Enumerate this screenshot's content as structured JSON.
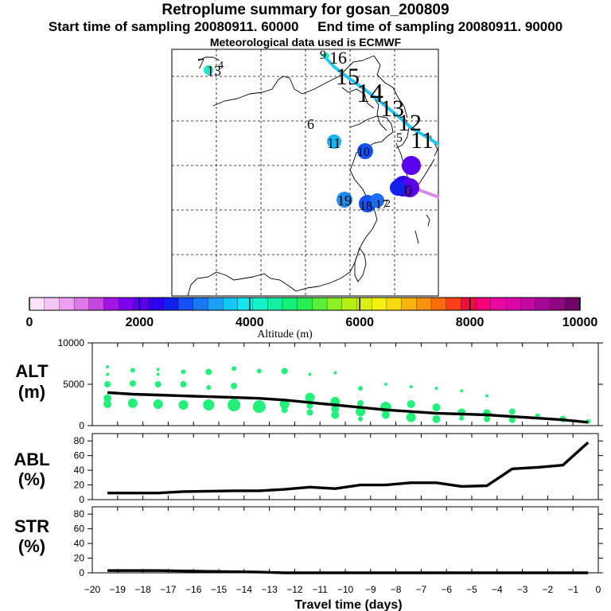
{
  "header": {
    "title": "Retroplume summary for gosan_200809",
    "sampling_start": "Start time of sampling 20080911. 60000",
    "sampling_end": "End time of sampling 20080911. 90000",
    "met_data": "Meteorological data used is ECMWF"
  },
  "colors": {
    "trajectory": "#22c6ee",
    "trajectory_tail": "#d88ae8",
    "dots": "#22f07a",
    "line": "#000000",
    "colorbar": [
      "#fbe3fb",
      "#f5c6f5",
      "#eda0ef",
      "#de78e6",
      "#c545e0",
      "#a414e6",
      "#7e00ee",
      "#5a00ee",
      "#2e00ee",
      "#1220ee",
      "#1450f4",
      "#1a78f4",
      "#1aa0f4",
      "#14c8f4",
      "#14e6f0",
      "#14f0c8",
      "#14f0a0",
      "#14f078",
      "#26f050",
      "#56f03a",
      "#8cf024",
      "#b4ee14",
      "#d8ee14",
      "#f4f014",
      "#f8d810",
      "#f8b40e",
      "#f8900c",
      "#f86c0c",
      "#f8401c",
      "#f00e3c",
      "#f0067a",
      "#ea06a0",
      "#d806a8",
      "#c406a4",
      "#a80696",
      "#8e0682",
      "#6e0466"
    ]
  },
  "chart_data": [
    {
      "type": "map",
      "title": "Retroplume summary for gosan_200809",
      "trajectory_labels": [
        {
          "label": "7",
          "day": 7
        },
        {
          "label": "13",
          "day": 13
        },
        {
          "label": "4",
          "day": 4
        },
        {
          "label": "9",
          "day": 9
        },
        {
          "label": "16",
          "day": 16
        },
        {
          "label": "15",
          "day": 15
        },
        {
          "label": "14",
          "day": 14
        },
        {
          "label": "13",
          "day": 13
        },
        {
          "label": "12",
          "day": 12
        },
        {
          "label": "5",
          "day": 5
        },
        {
          "label": "11",
          "day": 11
        },
        {
          "label": "6",
          "day": 6
        },
        {
          "label": "11",
          "day": 11
        },
        {
          "label": "10",
          "day": 10
        },
        {
          "label": "19",
          "day": 19
        },
        {
          "label": "18",
          "day": 18
        },
        {
          "label": "17",
          "day": 17
        },
        {
          "label": "2",
          "day": 2
        },
        {
          "label": "0",
          "day": 0
        }
      ]
    },
    {
      "type": "colorbar",
      "xlabel": "Altitude (m)",
      "range": [
        0,
        10000
      ],
      "ticks": [
        "0",
        "2000",
        "4000",
        "6000",
        "8000",
        "10000"
      ]
    },
    {
      "type": "line",
      "panel": "ALT",
      "ylabel": [
        "ALT",
        "(m)"
      ],
      "ylim": [
        0,
        10000
      ],
      "yticks": [
        "0",
        "5000",
        "10000"
      ],
      "x": [
        -19.4,
        -18.4,
        -17.4,
        -16.4,
        -15.4,
        -14.4,
        -13.4,
        -12.4,
        -11.4,
        -10.4,
        -9.4,
        -8.4,
        -7.4,
        -6.4,
        -5.4,
        -4.4,
        -3.4,
        -2.4,
        -1.4,
        -0.4
      ],
      "line": [
        4000,
        3800,
        3700,
        3600,
        3500,
        3400,
        3300,
        3100,
        2800,
        2500,
        2200,
        1900,
        1700,
        1500,
        1400,
        1300,
        1100,
        900,
        700,
        400
      ],
      "points": [
        {
          "x": -19.4,
          "y": 7100,
          "s": 2
        },
        {
          "x": -19.4,
          "y": 6200,
          "s": 2
        },
        {
          "x": -19.4,
          "y": 5000,
          "s": 4
        },
        {
          "x": -19.4,
          "y": 3300,
          "s": 5
        },
        {
          "x": -19.4,
          "y": 2600,
          "s": 5
        },
        {
          "x": -18.4,
          "y": 6700,
          "s": 3
        },
        {
          "x": -18.4,
          "y": 5100,
          "s": 4
        },
        {
          "x": -18.4,
          "y": 2700,
          "s": 6
        },
        {
          "x": -17.4,
          "y": 6800,
          "s": 2
        },
        {
          "x": -17.4,
          "y": 6200,
          "s": 2
        },
        {
          "x": -17.4,
          "y": 5000,
          "s": 4
        },
        {
          "x": -17.4,
          "y": 2600,
          "s": 6
        },
        {
          "x": -16.4,
          "y": 6500,
          "s": 3
        },
        {
          "x": -16.4,
          "y": 5000,
          "s": 4
        },
        {
          "x": -16.4,
          "y": 2500,
          "s": 6
        },
        {
          "x": -15.4,
          "y": 6500,
          "s": 4
        },
        {
          "x": -15.4,
          "y": 4600,
          "s": 3
        },
        {
          "x": -15.4,
          "y": 2500,
          "s": 7
        },
        {
          "x": -14.4,
          "y": 6900,
          "s": 3
        },
        {
          "x": -14.4,
          "y": 4800,
          "s": 4
        },
        {
          "x": -14.4,
          "y": 2500,
          "s": 8
        },
        {
          "x": -13.4,
          "y": 6600,
          "s": 3
        },
        {
          "x": -13.4,
          "y": 2300,
          "s": 8
        },
        {
          "x": -12.4,
          "y": 6600,
          "s": 4
        },
        {
          "x": -12.4,
          "y": 2600,
          "s": 6
        },
        {
          "x": -12.4,
          "y": 1900,
          "s": 4
        },
        {
          "x": -11.4,
          "y": 6200,
          "s": 2
        },
        {
          "x": -11.4,
          "y": 3400,
          "s": 6
        },
        {
          "x": -11.4,
          "y": 2400,
          "s": 4
        },
        {
          "x": -11.4,
          "y": 1600,
          "s": 4
        },
        {
          "x": -10.4,
          "y": 6400,
          "s": 2
        },
        {
          "x": -10.4,
          "y": 2900,
          "s": 6
        },
        {
          "x": -10.4,
          "y": 2000,
          "s": 5
        },
        {
          "x": -10.4,
          "y": 1300,
          "s": 5
        },
        {
          "x": -9.4,
          "y": 4500,
          "s": 3
        },
        {
          "x": -9.4,
          "y": 2700,
          "s": 4
        },
        {
          "x": -9.4,
          "y": 1700,
          "s": 6
        },
        {
          "x": -9.4,
          "y": 800,
          "s": 3
        },
        {
          "x": -8.4,
          "y": 5000,
          "s": 2
        },
        {
          "x": -8.4,
          "y": 2200,
          "s": 7
        },
        {
          "x": -8.4,
          "y": 1300,
          "s": 5
        },
        {
          "x": -7.4,
          "y": 4700,
          "s": 2
        },
        {
          "x": -7.4,
          "y": 2600,
          "s": 5
        },
        {
          "x": -7.4,
          "y": 1000,
          "s": 6
        },
        {
          "x": -6.4,
          "y": 4500,
          "s": 2
        },
        {
          "x": -6.4,
          "y": 2200,
          "s": 5
        },
        {
          "x": -6.4,
          "y": 800,
          "s": 5
        },
        {
          "x": -5.4,
          "y": 4200,
          "s": 2
        },
        {
          "x": -5.4,
          "y": 1600,
          "s": 5
        },
        {
          "x": -5.4,
          "y": 900,
          "s": 3
        },
        {
          "x": -4.4,
          "y": 3600,
          "s": 2
        },
        {
          "x": -4.4,
          "y": 1500,
          "s": 5
        },
        {
          "x": -4.4,
          "y": 800,
          "s": 4
        },
        {
          "x": -3.4,
          "y": 1700,
          "s": 4
        },
        {
          "x": -3.4,
          "y": 700,
          "s": 4
        },
        {
          "x": -2.4,
          "y": 1200,
          "s": 3
        },
        {
          "x": -1.4,
          "y": 800,
          "s": 4
        },
        {
          "x": -0.4,
          "y": 500,
          "s": 3
        }
      ]
    },
    {
      "type": "line",
      "panel": "ABL",
      "ylabel": [
        "ABL",
        "(%)"
      ],
      "ylim": [
        0,
        90
      ],
      "yticks": [
        "0",
        "20",
        "40",
        "60",
        "80"
      ],
      "x": [
        -19.4,
        -17.4,
        -16.4,
        -14.4,
        -13.4,
        -12.4,
        -11.4,
        -10.4,
        -9.4,
        -8.4,
        -7.4,
        -6.4,
        -5.4,
        -4.4,
        -3.4,
        -2.4,
        -1.4,
        -0.4
      ],
      "values": [
        9,
        9,
        11,
        12,
        12,
        14,
        17,
        15,
        20,
        20,
        23,
        23,
        18,
        19,
        42,
        44,
        47,
        78
      ]
    },
    {
      "type": "line",
      "panel": "STR",
      "ylabel": [
        "STR",
        "(%)"
      ],
      "ylim": [
        0,
        90
      ],
      "yticks": [
        "0",
        "20",
        "40",
        "60",
        "80"
      ],
      "x": [
        -19.4,
        -17.4,
        -15.4,
        -13.4,
        -12.4,
        -11.4,
        -0.4
      ],
      "values": [
        3,
        3,
        2,
        1,
        0,
        0,
        0
      ]
    },
    {
      "type": "axis",
      "xlabel": "Travel time (days)",
      "xlim": [
        -20,
        0
      ],
      "xticks": [
        "−20",
        "−19",
        "−18",
        "−17",
        "−16",
        "−15",
        "−14",
        "−13",
        "−12",
        "−11",
        "−10",
        "−9",
        "−8",
        "−7",
        "−6",
        "−5",
        "−4",
        "−3",
        "−2",
        "−1",
        "0"
      ]
    }
  ]
}
